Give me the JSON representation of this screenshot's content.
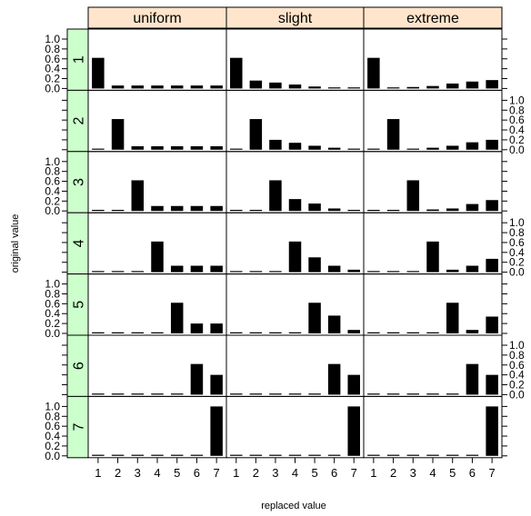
{
  "colors": {
    "strip_top": "#ffe5cc",
    "strip_left": "#ccffcc",
    "bar": "#000000",
    "panel_border": "#000000"
  },
  "chart_data": {
    "type": "bar",
    "layout": "trellis",
    "title": "",
    "xlabel": "replaced value",
    "ylabel": "original value",
    "columns": [
      "uniform",
      "slight",
      "extreme"
    ],
    "rows": [
      "1",
      "2",
      "3",
      "4",
      "5",
      "6",
      "7"
    ],
    "categories": [
      "1",
      "2",
      "3",
      "4",
      "5",
      "6",
      "7"
    ],
    "ylim": [
      0,
      1.0
    ],
    "yticks": [
      "0.0",
      "0.2",
      "0.4",
      "0.6",
      "0.8",
      "1.0"
    ],
    "ytick_values": [
      0,
      0.2,
      0.4,
      0.6,
      0.8,
      1.0
    ],
    "grid": false,
    "panels": {
      "uniform": [
        [
          0.62,
          0.06,
          0.06,
          0.06,
          0.06,
          0.06,
          0.06
        ],
        [
          0.01,
          0.62,
          0.07,
          0.07,
          0.07,
          0.07,
          0.07
        ],
        [
          0.01,
          0.01,
          0.62,
          0.1,
          0.1,
          0.1,
          0.1
        ],
        [
          0.01,
          0.01,
          0.01,
          0.62,
          0.13,
          0.13,
          0.13
        ],
        [
          0.01,
          0.01,
          0.01,
          0.01,
          0.62,
          0.2,
          0.2
        ],
        [
          0.01,
          0.01,
          0.01,
          0.01,
          0.01,
          0.62,
          0.4
        ],
        [
          0.01,
          0.01,
          0.01,
          0.01,
          0.01,
          0.01,
          1.0
        ]
      ],
      "slight": [
        [
          0.62,
          0.16,
          0.12,
          0.08,
          0.04,
          0.02,
          0.01
        ],
        [
          0.01,
          0.62,
          0.2,
          0.14,
          0.08,
          0.04,
          0.02
        ],
        [
          0.01,
          0.01,
          0.62,
          0.24,
          0.15,
          0.05,
          0.02
        ],
        [
          0.01,
          0.01,
          0.01,
          0.62,
          0.3,
          0.13,
          0.05
        ],
        [
          0.01,
          0.01,
          0.01,
          0.01,
          0.62,
          0.36,
          0.07
        ],
        [
          0.01,
          0.01,
          0.01,
          0.01,
          0.01,
          0.62,
          0.4
        ],
        [
          0.01,
          0.01,
          0.01,
          0.01,
          0.01,
          0.01,
          1.0
        ]
      ],
      "extreme": [
        [
          0.62,
          0.01,
          0.03,
          0.05,
          0.1,
          0.14,
          0.17
        ],
        [
          0.01,
          0.62,
          0.01,
          0.04,
          0.08,
          0.15,
          0.2
        ],
        [
          0.01,
          0.01,
          0.62,
          0.03,
          0.05,
          0.14,
          0.22
        ],
        [
          0.01,
          0.01,
          0.01,
          0.62,
          0.05,
          0.13,
          0.27
        ],
        [
          0.01,
          0.01,
          0.01,
          0.01,
          0.62,
          0.07,
          0.34
        ],
        [
          0.01,
          0.01,
          0.01,
          0.01,
          0.01,
          0.62,
          0.4
        ],
        [
          0.01,
          0.01,
          0.01,
          0.01,
          0.01,
          0.01,
          1.0
        ]
      ]
    }
  }
}
